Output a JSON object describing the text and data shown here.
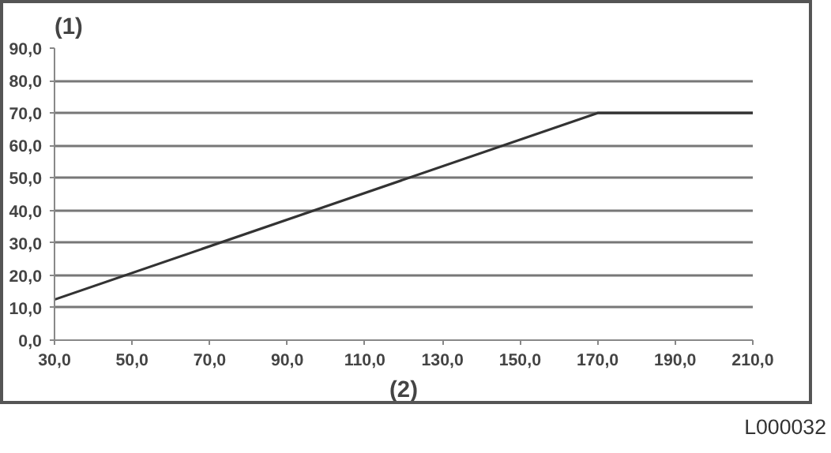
{
  "chart_data": {
    "type": "line",
    "xlabel": "(2)",
    "ylabel": "(1)",
    "annotations": [
      "L000032"
    ],
    "x": [
      30,
      170,
      210
    ],
    "series": [
      {
        "color": "#333333",
        "values": [
          12.5,
          70,
          70
        ]
      }
    ],
    "xlim": [
      30,
      210
    ],
    "ylim": [
      0,
      90
    ],
    "xticks": [
      {
        "value": 30,
        "label": "30,0"
      },
      {
        "value": 50,
        "label": "50,0"
      },
      {
        "value": 70,
        "label": "70,0"
      },
      {
        "value": 90,
        "label": "90,0"
      },
      {
        "value": 110,
        "label": "110,0"
      },
      {
        "value": 130,
        "label": "130,0"
      },
      {
        "value": 150,
        "label": "150,0"
      },
      {
        "value": 170,
        "label": "170,0"
      },
      {
        "value": 190,
        "label": "190,0"
      },
      {
        "value": 210,
        "label": "210,0"
      }
    ],
    "yticks": [
      {
        "value": 0,
        "label": "0,0"
      },
      {
        "value": 10,
        "label": "10,0"
      },
      {
        "value": 20,
        "label": "20,0"
      },
      {
        "value": 30,
        "label": "30,0"
      },
      {
        "value": 40,
        "label": "40,0"
      },
      {
        "value": 50,
        "label": "50,0"
      },
      {
        "value": 60,
        "label": "60,0"
      },
      {
        "value": 70,
        "label": "70,0"
      },
      {
        "value": 80,
        "label": "80,0"
      },
      {
        "value": 90,
        "label": "90,0"
      }
    ],
    "grid": "y",
    "line_style": "solid"
  }
}
